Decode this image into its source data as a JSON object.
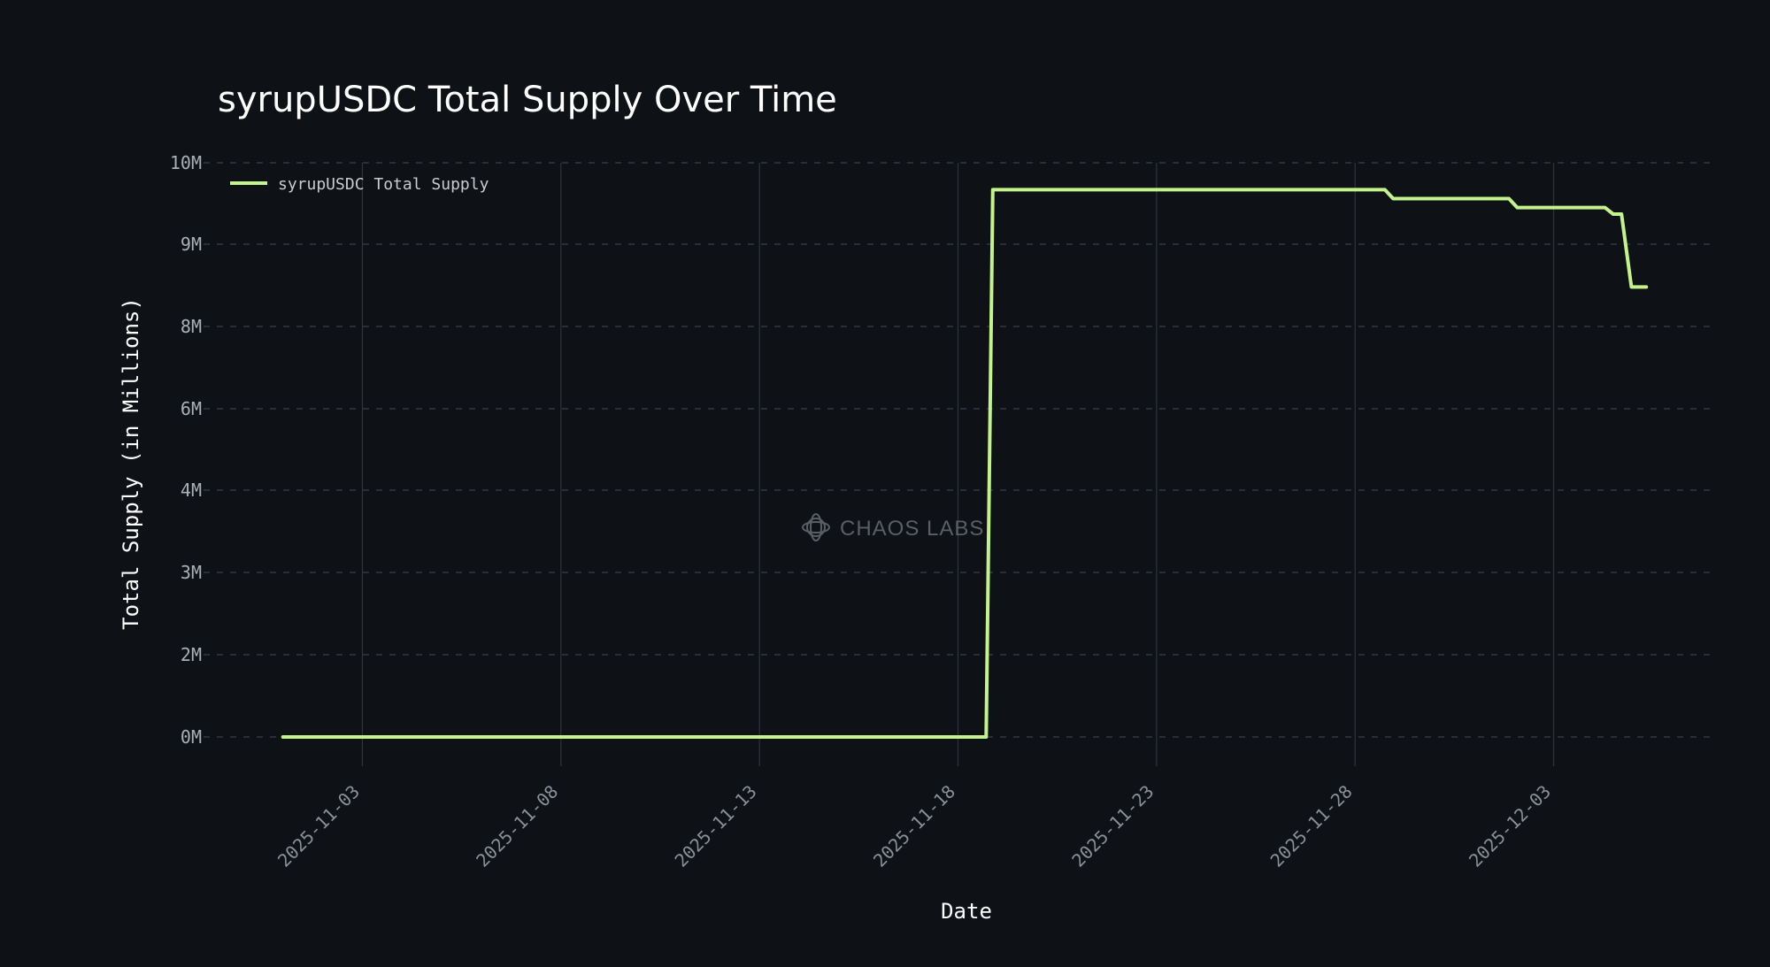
{
  "chart_data": {
    "type": "line",
    "title": "syrupUSDC Total Supply Over Time",
    "xlabel": "Date",
    "ylabel": "Total Supply (in Millions)",
    "legend_position": "top-left",
    "grid": "on",
    "watermark": "CHAOS LABS",
    "x_ticks": [
      "2025-11-03",
      "2025-11-08",
      "2025-11-13",
      "2025-11-18",
      "2025-11-23",
      "2025-11-28",
      "2025-12-03"
    ],
    "y_ticks": [
      {
        "label": "0M",
        "value": 0
      },
      {
        "label": "2M",
        "value": 2000000
      },
      {
        "label": "3M",
        "value": 3000000
      },
      {
        "label": "4M",
        "value": 4000000
      },
      {
        "label": "6M",
        "value": 6000000
      },
      {
        "label": "8M",
        "value": 8000000
      },
      {
        "label": "9M",
        "value": 9000000
      },
      {
        "label": "10M",
        "value": 10000000
      }
    ],
    "ylim": [
      0,
      10000000
    ],
    "xlim": [
      "2025-10-30T00:00",
      "2025-12-07T00:00"
    ],
    "series": [
      {
        "name": "syrupUSDC Total Supply",
        "color": "#c3f38a",
        "points": [
          {
            "x": "2025-11-01T00:00",
            "y": 0
          },
          {
            "x": "2025-11-18T17:00",
            "y": 0
          },
          {
            "x": "2025-11-18T21:00",
            "y": 9670000
          },
          {
            "x": "2025-11-28T18:00",
            "y": 9670000
          },
          {
            "x": "2025-11-28T23:00",
            "y": 9560000
          },
          {
            "x": "2025-12-01T21:00",
            "y": 9560000
          },
          {
            "x": "2025-12-02T02:00",
            "y": 9450000
          },
          {
            "x": "2025-12-04T07:00",
            "y": 9450000
          },
          {
            "x": "2025-12-04T12:00",
            "y": 9370000
          },
          {
            "x": "2025-12-04T17:00",
            "y": 9370000
          },
          {
            "x": "2025-12-04T23:00",
            "y": 8480000
          },
          {
            "x": "2025-12-05T08:00",
            "y": 8480000
          }
        ]
      }
    ]
  }
}
